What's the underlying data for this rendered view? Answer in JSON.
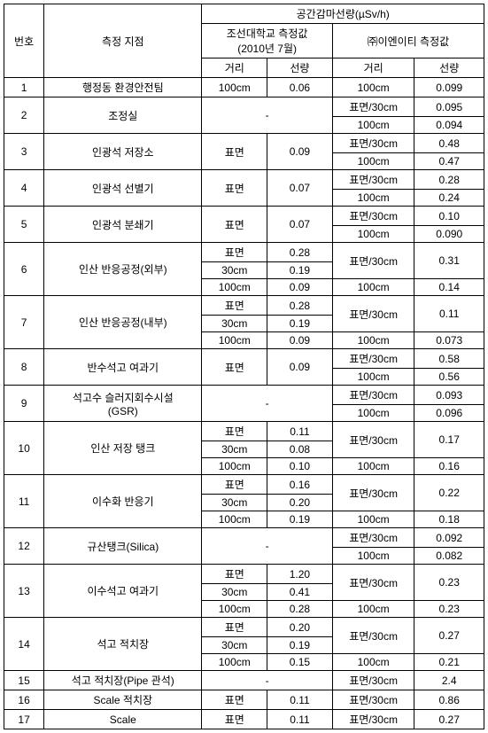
{
  "headers": {
    "num": "번호",
    "loc": "측정 지점",
    "dose_group": "공간감마선량(µSv/h)",
    "univ_group": "조선대학교 측정값\n(2010년 7월)",
    "ent_group": "㈜이엔이티 측정값",
    "dist": "거리",
    "dose": "선량"
  },
  "rows": [
    {
      "num": "1",
      "loc": "행정동 환경안전팀",
      "c1": [
        [
          "100cm",
          "0.06"
        ]
      ],
      "c2": [
        [
          "100cm",
          "0.099"
        ]
      ]
    },
    {
      "num": "2",
      "loc": "조정실",
      "c1": [
        [
          "-",
          "__SPAN__"
        ]
      ],
      "c2": [
        [
          "표면/30cm",
          "0.095"
        ],
        [
          "100cm",
          "0.094"
        ]
      ]
    },
    {
      "num": "3",
      "loc": "인광석 저장소",
      "c1": [
        [
          "표면",
          "0.09"
        ]
      ],
      "c2": [
        [
          "표면/30cm",
          "0.48"
        ],
        [
          "100cm",
          "0.47"
        ]
      ]
    },
    {
      "num": "4",
      "loc": "인광석 선별기",
      "c1": [
        [
          "표면",
          "0.07"
        ]
      ],
      "c2": [
        [
          "표면/30cm",
          "0.28"
        ],
        [
          "100cm",
          "0.24"
        ]
      ]
    },
    {
      "num": "5",
      "loc": "인광석 분쇄기",
      "c1": [
        [
          "표면",
          "0.07"
        ]
      ],
      "c2": [
        [
          "표면/30cm",
          "0.10"
        ],
        [
          "100cm",
          "0.090"
        ]
      ]
    },
    {
      "num": "6",
      "loc": "인산 반응공정(외부)",
      "c1": [
        [
          "표면",
          "0.28"
        ],
        [
          "30cm",
          "0.19"
        ],
        [
          "100cm",
          "0.09"
        ]
      ],
      "c2": [
        [
          "표면/30cm",
          "0.31"
        ],
        [
          "__SKIP__",
          "__SKIP__"
        ],
        [
          "100cm",
          "0.14"
        ]
      ],
      "c2rowspans": [
        2,
        0,
        1
      ]
    },
    {
      "num": "7",
      "loc": "인산 반응공정(내부)",
      "c1": [
        [
          "표면",
          "0.28"
        ],
        [
          "30cm",
          "0.19"
        ],
        [
          "100cm",
          "0.09"
        ]
      ],
      "c2": [
        [
          "표면/30cm",
          "0.11"
        ],
        [
          "__SKIP__",
          "__SKIP__"
        ],
        [
          "100cm",
          "0.073"
        ]
      ],
      "c2rowspans": [
        2,
        0,
        1
      ]
    },
    {
      "num": "8",
      "loc": "반수석고 여과기",
      "c1": [
        [
          "표면",
          "0.09"
        ]
      ],
      "c2": [
        [
          "표면/30cm",
          "0.58"
        ],
        [
          "100cm",
          "0.56"
        ]
      ]
    },
    {
      "num": "9",
      "loc": "석고수 슬러지회수시설\n(GSR)",
      "c1": [
        [
          "-",
          "__SPAN__"
        ]
      ],
      "c2": [
        [
          "표면/30cm",
          "0.093"
        ],
        [
          "100cm",
          "0.096"
        ]
      ]
    },
    {
      "num": "10",
      "loc": "인산 저장 탱크",
      "c1": [
        [
          "표면",
          "0.11"
        ],
        [
          "30cm",
          "0.08"
        ],
        [
          "100cm",
          "0.10"
        ]
      ],
      "c2": [
        [
          "표면/30cm",
          "0.17"
        ],
        [
          "__SKIP__",
          "__SKIP__"
        ],
        [
          "100cm",
          "0.16"
        ]
      ],
      "c2rowspans": [
        2,
        0,
        1
      ]
    },
    {
      "num": "11",
      "loc": "이수화 반응기",
      "c1": [
        [
          "표면",
          "0.16"
        ],
        [
          "30cm",
          "0.20"
        ],
        [
          "100cm",
          "0.19"
        ]
      ],
      "c2": [
        [
          "표면/30cm",
          "0.22"
        ],
        [
          "__SKIP__",
          "__SKIP__"
        ],
        [
          "100cm",
          "0.18"
        ]
      ],
      "c2rowspans": [
        2,
        0,
        1
      ]
    },
    {
      "num": "12",
      "loc": "규산탱크(Silica)",
      "c1": [
        [
          "-",
          "__SPAN__"
        ]
      ],
      "c2": [
        [
          "표면/30cm",
          "0.092"
        ],
        [
          "100cm",
          "0.082"
        ]
      ]
    },
    {
      "num": "13",
      "loc": "이수석고 여과기",
      "c1": [
        [
          "표면",
          "1.20"
        ],
        [
          "30cm",
          "0.41"
        ],
        [
          "100cm",
          "0.28"
        ]
      ],
      "c2": [
        [
          "표면/30cm",
          "0.23"
        ],
        [
          "__SKIP__",
          "__SKIP__"
        ],
        [
          "100cm",
          "0.23"
        ]
      ],
      "c2rowspans": [
        2,
        0,
        1
      ]
    },
    {
      "num": "14",
      "loc": "석고 적치장",
      "c1": [
        [
          "표면",
          "0.20"
        ],
        [
          "30cm",
          "0.19"
        ],
        [
          "100cm",
          "0.15"
        ]
      ],
      "c2": [
        [
          "표면/30cm",
          "0.27"
        ],
        [
          "__SKIP__",
          "__SKIP__"
        ],
        [
          "100cm",
          "0.21"
        ]
      ],
      "c2rowspans": [
        2,
        0,
        1
      ]
    },
    {
      "num": "15",
      "loc": "석고 적치장(Pipe 관석)",
      "c1": [
        [
          "-",
          "__SPAN__"
        ]
      ],
      "c2": [
        [
          "표면/30cm",
          "2.4"
        ]
      ]
    },
    {
      "num": "16",
      "loc": "Scale 적치장",
      "c1": [
        [
          "표면",
          "0.11"
        ]
      ],
      "c2": [
        [
          "표면/30cm",
          "0.86"
        ]
      ]
    },
    {
      "num": "17",
      "loc": "Scale",
      "c1": [
        [
          "표면",
          "0.11"
        ]
      ],
      "c2": [
        [
          "표면/30cm",
          "0.27"
        ]
      ]
    }
  ]
}
